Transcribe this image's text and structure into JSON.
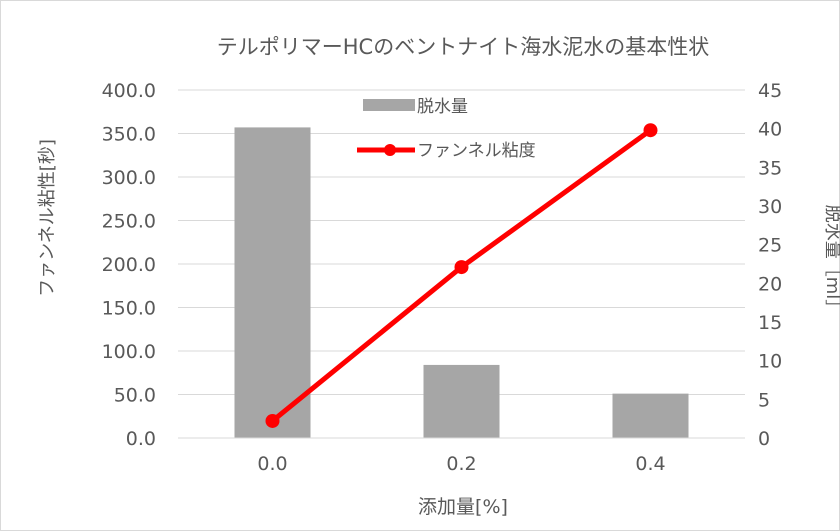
{
  "chart_data": {
    "type": "bar",
    "title": "テルポリマーHCのベントナイト海水泥水の基本性状",
    "xlabel": "添加量[%]",
    "ylabel": "ファンネル粘性[秒]",
    "y2label": "脱水量［ml］",
    "categories": [
      "0.0",
      "0.2",
      "0.4"
    ],
    "ylim": [
      0,
      400
    ],
    "y2lim": [
      0,
      45
    ],
    "yticks": [
      "0.0",
      "50.0",
      "100.0",
      "150.0",
      "200.0",
      "250.0",
      "300.0",
      "350.0",
      "400.0"
    ],
    "y2ticks": [
      "0",
      "5",
      "10",
      "15",
      "20",
      "25",
      "30",
      "35",
      "40",
      "45"
    ],
    "grid": true,
    "legend_position": "top-center",
    "series": [
      {
        "name": "脱水量",
        "type": "bar",
        "axis": "left",
        "values": [
          357,
          84,
          51
        ],
        "color": "#a6a6a6"
      },
      {
        "name": "ファンネル粘度",
        "type": "line",
        "axis": "right",
        "values": [
          2.2,
          22.1,
          39.8
        ],
        "color": "#ff0000"
      }
    ]
  }
}
